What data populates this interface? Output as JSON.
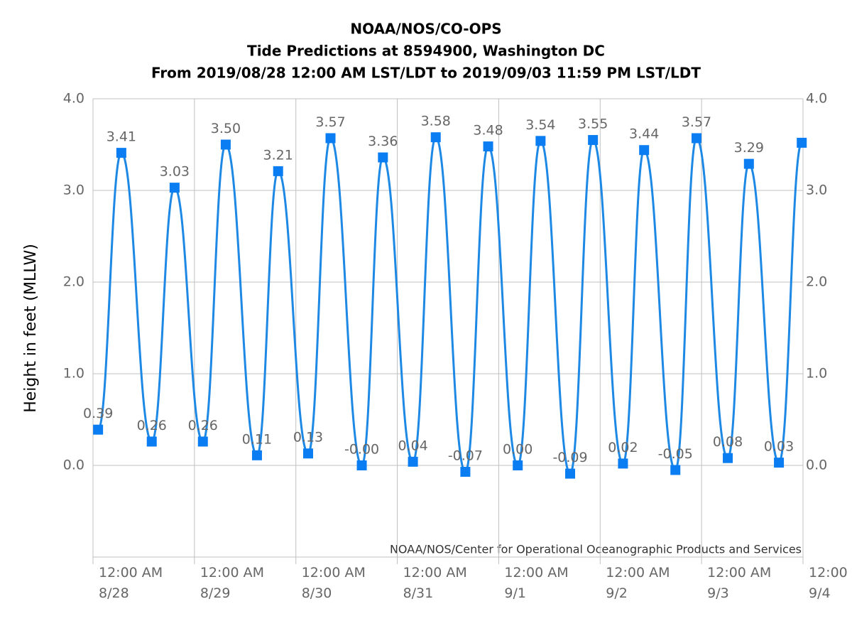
{
  "chart_data": {
    "type": "line",
    "title": [
      "NOAA/NOS/CO-OPS",
      "Tide Predictions at 8594900, Washington DC",
      "From 2019/08/28 12:00 AM LST/LDT to 2019/09/03 11:59 PM LST/LDT"
    ],
    "y_label": "Height in feet (MLLW)",
    "credit": "NOAA/NOS/Center for Operational Oceanographic Products and Services",
    "x": [
      1.2,
      6.7,
      13.9,
      19.3,
      26.0,
      31.4,
      38.8,
      43.8,
      50.9,
      56.2,
      63.6,
      68.6,
      75.7,
      81.1,
      88.1,
      93.5,
      100.5,
      105.9,
      112.9,
      118.3,
      125.4,
      130.4,
      137.8,
      142.8,
      150.2,
      155.2,
      162.3,
      167.7
    ],
    "series": [
      {
        "name": "Prediction",
        "color": "#1e88e5",
        "marker_color": "#0a7df2",
        "values": [
          0.39,
          3.41,
          0.26,
          3.03,
          0.26,
          3.5,
          0.11,
          3.21,
          0.13,
          3.57,
          0,
          3.36,
          0.04,
          3.58,
          -0.07,
          3.48,
          0,
          3.54,
          -0.09,
          3.55,
          0.02,
          3.44,
          -0.05,
          3.57,
          0.08,
          3.29,
          0.03,
          3.52
        ],
        "value_labels": [
          "0.39",
          "3.41",
          "0.26",
          "3.03",
          "0.26",
          "3.50",
          "0.11",
          "3.21",
          "0.13",
          "3.57",
          "-0.00",
          "3.36",
          "0.04",
          "3.58",
          "-0.07",
          "3.48",
          "0.00",
          "3.54",
          "-0.09",
          "3.55",
          "0.02",
          "3.44",
          "-0.05",
          "3.57",
          "0.08",
          "3.29",
          "0.03",
          null
        ]
      }
    ],
    "xlim": [
      0,
      168
    ],
    "xticks": [
      {
        "value": 0,
        "label": "12:00 AM\n8/28"
      },
      {
        "value": 24,
        "label": "12:00 AM\n8/29"
      },
      {
        "value": 48,
        "label": "12:00 AM\n8/30"
      },
      {
        "value": 72,
        "label": "12:00 AM\n8/31"
      },
      {
        "value": 96,
        "label": "12:00 AM\n9/1"
      },
      {
        "value": 120,
        "label": "12:00 AM\n9/2"
      },
      {
        "value": 144,
        "label": "12:00 AM\n9/3"
      },
      {
        "value": 168,
        "label": "12:00\n9/4"
      }
    ],
    "ylim": [
      -1,
      4
    ],
    "yticks": [
      {
        "value": 0,
        "label": "0.0"
      },
      {
        "value": 1,
        "label": "1.0"
      },
      {
        "value": 2,
        "label": "2.0"
      },
      {
        "value": 3,
        "label": "3.0"
      },
      {
        "value": 4,
        "label": "4.0"
      }
    ],
    "grid": true
  }
}
